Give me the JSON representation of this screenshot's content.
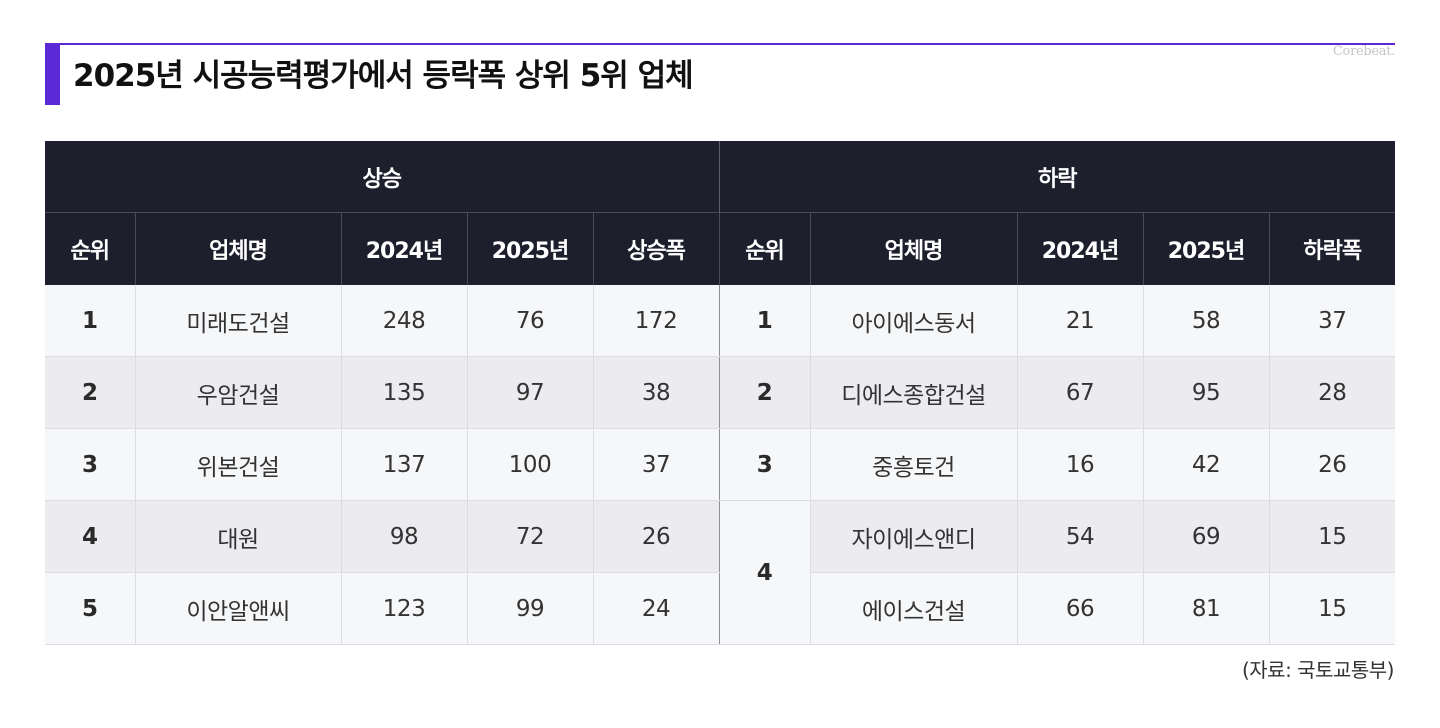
{
  "header": {
    "title": "2025년 시공능력평가에서 등락폭 상위 5위 업체",
    "logo": "Corebeat."
  },
  "table": {
    "groups": {
      "rise": "상승",
      "fall": "하락"
    },
    "columns": {
      "rank": "순위",
      "company": "업체명",
      "y2024": "2024년",
      "y2025": "2025년",
      "rise_amount": "상승폭",
      "fall_amount": "하락폭"
    },
    "rise": [
      {
        "rank": "1",
        "company": "미래도건설",
        "y2024": "248",
        "y2025": "76",
        "change": "172"
      },
      {
        "rank": "2",
        "company": "우암건설",
        "y2024": "135",
        "y2025": "97",
        "change": "38"
      },
      {
        "rank": "3",
        "company": "위본건설",
        "y2024": "137",
        "y2025": "100",
        "change": "37"
      },
      {
        "rank": "4",
        "company": "대원",
        "y2024": "98",
        "y2025": "72",
        "change": "26"
      },
      {
        "rank": "5",
        "company": "이안알앤씨",
        "y2024": "123",
        "y2025": "99",
        "change": "24"
      }
    ],
    "fall": [
      {
        "rank": "1",
        "company": "아이에스동서",
        "y2024": "21",
        "y2025": "58",
        "change": "37"
      },
      {
        "rank": "2",
        "company": "디에스종합건설",
        "y2024": "67",
        "y2025": "95",
        "change": "28"
      },
      {
        "rank": "3",
        "company": "중흥토건",
        "y2024": "16",
        "y2025": "42",
        "change": "26"
      },
      {
        "rank": "4",
        "company": "자이에스앤디",
        "y2024": "54",
        "y2025": "69",
        "change": "15"
      },
      {
        "rank": "",
        "company": "에이스건설",
        "y2024": "66",
        "y2025": "81",
        "change": "15"
      }
    ]
  },
  "source": "(자료: 국토교통부)",
  "colors": {
    "accent": "#5b2ad6",
    "header_bg": "#1e1f2d",
    "row_light": "#f6f7f9",
    "row_dark": "#ececf0"
  }
}
